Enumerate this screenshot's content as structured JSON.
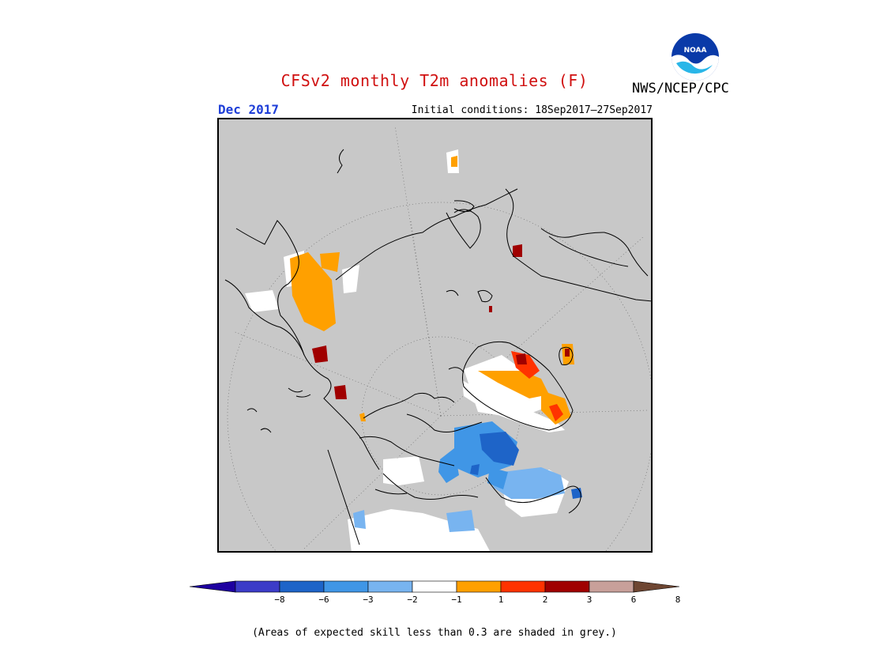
{
  "title": "CFSv2 monthly T2m anomalies (F)",
  "agency": "NWS/NCEP/CPC",
  "logo_text": "NOAA",
  "month": "Dec 2017",
  "initial_conditions": "Initial conditions: 18Sep2017–27Sep2017",
  "note": "(Areas of expected skill less than 0.3 are shaded in grey.)",
  "colors": {
    "title": "#d01010",
    "month": "#1f3fd8",
    "map_background": "#c8c8c8",
    "warm_1_2": "#ffa000",
    "warm_2_3": "#ff3300",
    "warm_3_6": "#a00000",
    "cool_1_2": "#78b4f0",
    "cool_2_3": "#4096e6",
    "cool_3_6": "#1e64c8",
    "neutral": "#ffffff"
  },
  "colorbar": {
    "colors": [
      "#1e00a0",
      "#3c3cc8",
      "#1e64c8",
      "#4096e6",
      "#78b4f0",
      "#ffffff",
      "#ffa000",
      "#ff3300",
      "#a00000",
      "#c8a09a",
      "#6e4632"
    ],
    "labels": [
      "−8",
      "−6",
      "−3",
      "−2",
      "−1",
      "1",
      "2",
      "3",
      "6",
      "8"
    ]
  }
}
